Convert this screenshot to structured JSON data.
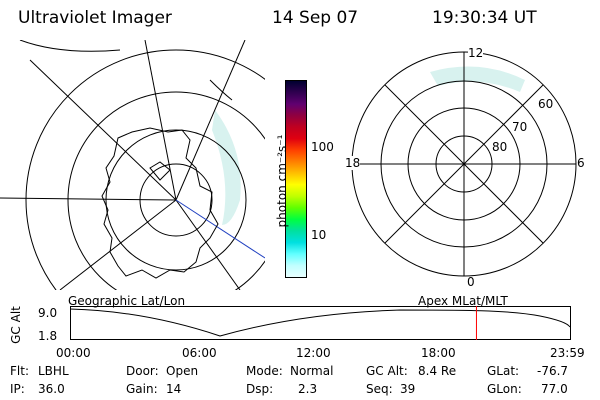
{
  "header": {
    "instrument": "Ultraviolet Imager",
    "date": "14 Sep 07",
    "time": "19:30:34 UT"
  },
  "colorbar": {
    "unit": "photon cm⁻²s⁻¹",
    "ticks": [
      "100",
      "10"
    ],
    "colors": [
      "#000030",
      "#300050",
      "#600070",
      "#900040",
      "#c00020",
      "#e00010",
      "#ff4000",
      "#ff8000",
      "#ffc000",
      "#ffff00",
      "#c0ff00",
      "#60ff00",
      "#00ff40",
      "#00e0a0",
      "#00e0e0",
      "#60ffff",
      "#c0ffff",
      "#e8ffff"
    ]
  },
  "right_map": {
    "mlt_labels": {
      "top": "12",
      "bottom": "0",
      "left": "18",
      "right": "6"
    },
    "lat_labels": [
      "60",
      "70",
      "80"
    ]
  },
  "panel_labels": {
    "left": "Geographic Lat/Lon",
    "right": "Apex MLat/MLT"
  },
  "orbit_plot": {
    "ylabel": "GC Alt",
    "yticks": [
      "9.0",
      "1.8"
    ],
    "xticks": [
      "00:00",
      "06:00",
      "12:00",
      "18:00",
      "23:59"
    ],
    "marker_time_hours": 19.51,
    "marker_color": "#ff0000"
  },
  "status": {
    "flt_label": "Flt:",
    "flt_value": "LBHL",
    "ip_label": "IP:",
    "ip_value": "36.0",
    "door_label": "Door:",
    "door_value": "Open",
    "gain_label": "Gain:",
    "gain_value": "14",
    "mode_label": "Mode:",
    "mode_value": "Normal",
    "dsp_label": "Dsp:",
    "dsp_value": "2.3",
    "gcalt_label": "GC Alt:",
    "gcalt_value": "8.4 Re",
    "seq_label": "Seq:",
    "seq_value": "39",
    "glat_label": "GLat:",
    "glat_value": "-76.7",
    "glon_label": "GLon:",
    "glon_value": "77.0"
  }
}
